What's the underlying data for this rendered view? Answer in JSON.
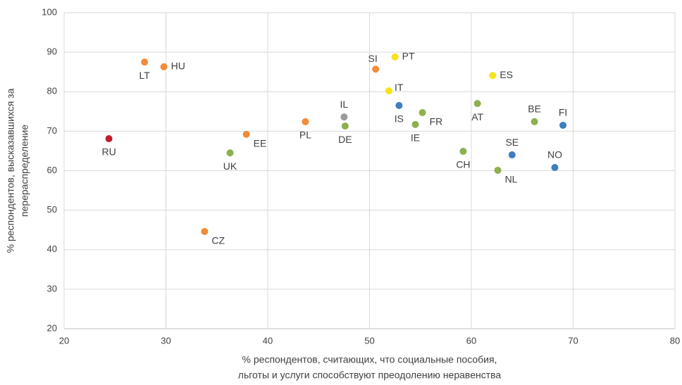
{
  "chart_data": {
    "type": "scatter",
    "xlabel": [
      "% респондентов, считающих, что социальные пособия,",
      "льготы и услуги способствуют преодолению неравенства"
    ],
    "ylabel": [
      "% респондентов, высказавшихся за",
      "перераспределение"
    ],
    "xlim": [
      20,
      80
    ],
    "xticks": [
      20,
      30,
      40,
      50,
      60,
      70,
      80
    ],
    "ylim": [
      20,
      100
    ],
    "yticks": [
      20,
      30,
      40,
      50,
      60,
      70,
      80,
      90,
      100
    ],
    "grid": true,
    "series": [
      {
        "color": "#c0202a",
        "x": [
          24.4
        ],
        "values": [
          68.1
        ],
        "labels": [
          "RU"
        ]
      },
      {
        "color": "#f08c3a",
        "x": [
          27.9,
          29.8,
          37.9,
          43.7,
          50.6,
          33.8
        ],
        "values": [
          87.5,
          86.3,
          69.2,
          72.4,
          85.7,
          44.6
        ],
        "labels": [
          "LT",
          "HU",
          "EE",
          "PL",
          "SI",
          "CZ"
        ]
      },
      {
        "color": "#f5e21b",
        "x": [
          52.5,
          51.9,
          62.1
        ],
        "values": [
          88.8,
          80.2,
          84.1
        ],
        "labels": [
          "PT",
          "IT",
          "ES"
        ]
      },
      {
        "color": "#9a9a9a",
        "x": [
          47.5
        ],
        "values": [
          73.6
        ],
        "labels": [
          "IL"
        ]
      },
      {
        "color": "#8db04e",
        "x": [
          36.3,
          47.6,
          55.2,
          54.5,
          60.6,
          59.2,
          62.6,
          66.2
        ],
        "values": [
          64.5,
          71.3,
          74.7,
          71.7,
          77.0,
          64.9,
          60.1,
          72.4
        ],
        "labels": [
          "UK",
          "DE",
          "FR",
          "IE",
          "AT",
          "CH",
          "NL",
          "BE"
        ]
      },
      {
        "color": "#3f7dc0",
        "x": [
          52.9,
          64.0,
          69.0,
          68.2
        ],
        "values": [
          76.5,
          64.0,
          71.5,
          60.8
        ],
        "labels": [
          "IS",
          "SE",
          "FI",
          "NO"
        ]
      }
    ]
  }
}
